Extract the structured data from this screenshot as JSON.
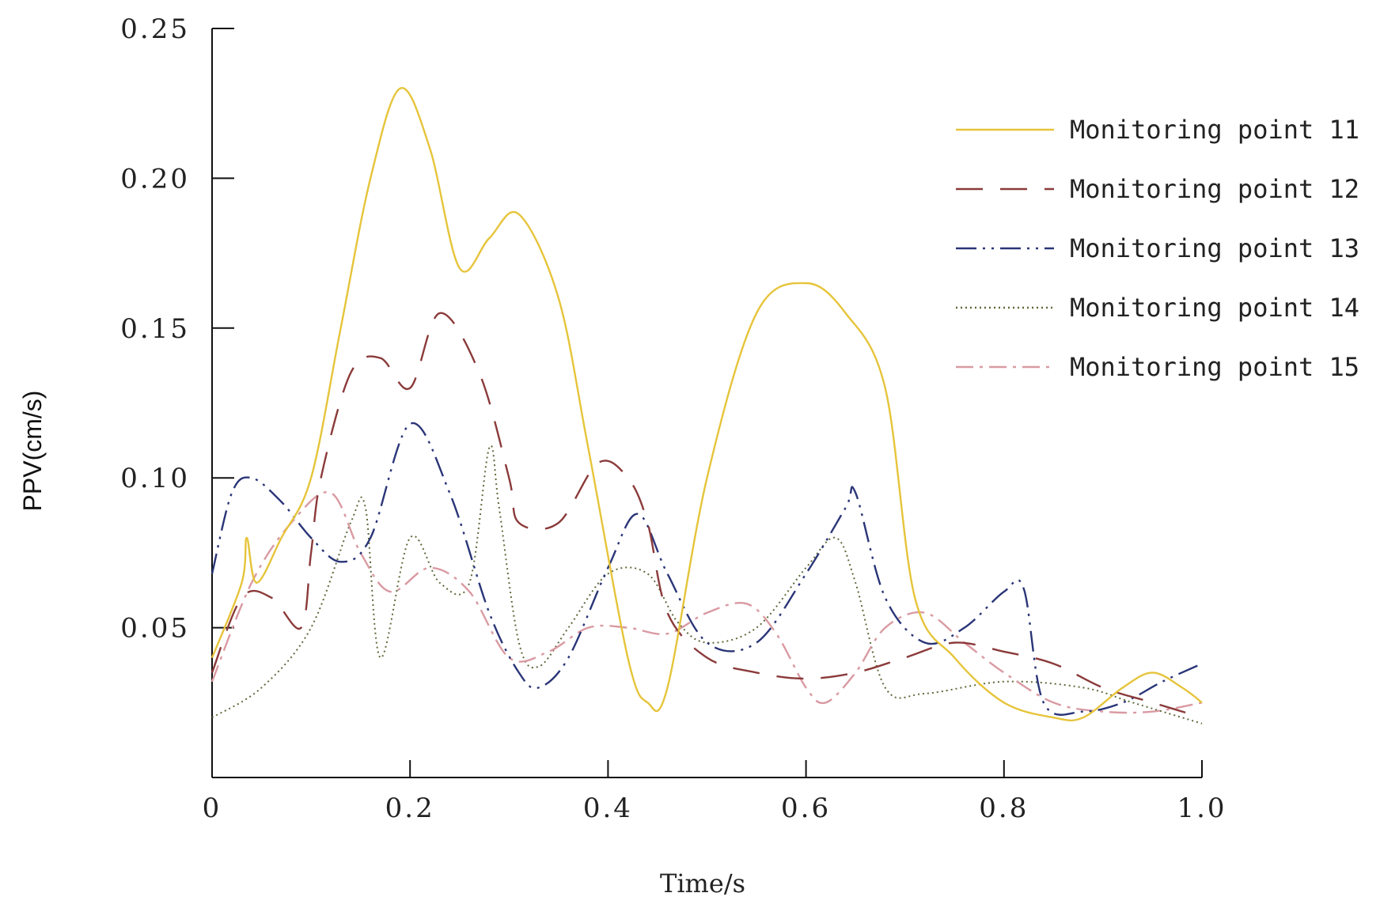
{
  "chart_data": {
    "type": "line",
    "title": "",
    "xlabel": "Time/s",
    "ylabel": "PPV(cm/s)",
    "xlim": [
      0,
      1.0
    ],
    "ylim": [
      0,
      0.25
    ],
    "x_ticks": [
      0,
      0.2,
      0.4,
      0.6,
      0.8,
      1.0
    ],
    "x_tick_labels": [
      "0",
      "0.2",
      "0.4",
      "0.6",
      "0.8",
      "1.0"
    ],
    "y_ticks": [
      0.05,
      0.1,
      0.15,
      0.2,
      0.25
    ],
    "y_tick_labels": [
      "0.05",
      "0.10",
      "0.15",
      "0.20",
      "0.25"
    ],
    "grid": false,
    "legend_position": "top-right",
    "series": [
      {
        "name": "Monitoring point 11",
        "color": "#e6c43a",
        "dash": "solid",
        "x": [
          0,
          0.03,
          0.035,
          0.045,
          0.07,
          0.1,
          0.13,
          0.16,
          0.19,
          0.22,
          0.25,
          0.28,
          0.31,
          0.35,
          0.38,
          0.42,
          0.44,
          0.46,
          0.5,
          0.55,
          0.6,
          0.64,
          0.68,
          0.71,
          0.75,
          0.8,
          0.85,
          0.88,
          0.92,
          0.95,
          0.98,
          1.0
        ],
        "y": [
          0.04,
          0.065,
          0.08,
          0.065,
          0.08,
          0.1,
          0.15,
          0.2,
          0.23,
          0.21,
          0.17,
          0.18,
          0.188,
          0.16,
          0.11,
          0.04,
          0.025,
          0.03,
          0.1,
          0.155,
          0.165,
          0.155,
          0.13,
          0.06,
          0.04,
          0.025,
          0.02,
          0.02,
          0.03,
          0.035,
          0.03,
          0.025
        ]
      },
      {
        "name": "Monitoring point 12",
        "color": "#8b3a3a",
        "dash": "long-dash",
        "x": [
          0,
          0.03,
          0.06,
          0.09,
          0.1,
          0.11,
          0.14,
          0.17,
          0.2,
          0.23,
          0.27,
          0.3,
          0.31,
          0.35,
          0.39,
          0.42,
          0.44,
          0.46,
          0.5,
          0.55,
          0.6,
          0.65,
          0.7,
          0.75,
          0.8,
          0.85,
          0.9,
          0.95,
          1.0
        ],
        "y": [
          0.035,
          0.06,
          0.06,
          0.05,
          0.075,
          0.1,
          0.135,
          0.14,
          0.13,
          0.155,
          0.135,
          0.1,
          0.085,
          0.085,
          0.105,
          0.1,
          0.085,
          0.055,
          0.04,
          0.035,
          0.033,
          0.035,
          0.04,
          0.045,
          0.042,
          0.038,
          0.03,
          0.025,
          0.02
        ]
      },
      {
        "name": "Monitoring point 13",
        "color": "#2a3577",
        "dash": "dash-dot-dot",
        "x": [
          0,
          0.02,
          0.04,
          0.07,
          0.1,
          0.13,
          0.16,
          0.2,
          0.24,
          0.28,
          0.31,
          0.33,
          0.36,
          0.4,
          0.43,
          0.46,
          0.5,
          0.55,
          0.6,
          0.64,
          0.65,
          0.68,
          0.72,
          0.76,
          0.8,
          0.82,
          0.84,
          0.88,
          0.92,
          0.96,
          1.0
        ],
        "y": [
          0.068,
          0.095,
          0.1,
          0.092,
          0.08,
          0.072,
          0.08,
          0.118,
          0.095,
          0.055,
          0.035,
          0.03,
          0.04,
          0.07,
          0.088,
          0.068,
          0.045,
          0.045,
          0.068,
          0.09,
          0.095,
          0.06,
          0.045,
          0.05,
          0.062,
          0.063,
          0.025,
          0.022,
          0.025,
          0.032,
          0.038
        ]
      },
      {
        "name": "Monitoring point 14",
        "color": "#5e6a3a",
        "dash": "dotted",
        "x": [
          0,
          0.05,
          0.1,
          0.14,
          0.155,
          0.17,
          0.2,
          0.23,
          0.26,
          0.28,
          0.29,
          0.31,
          0.33,
          0.36,
          0.4,
          0.44,
          0.47,
          0.5,
          0.55,
          0.6,
          0.63,
          0.65,
          0.68,
          0.72,
          0.8,
          0.88,
          0.93,
          1.0
        ],
        "y": [
          0.02,
          0.03,
          0.05,
          0.085,
          0.09,
          0.04,
          0.08,
          0.065,
          0.065,
          0.11,
          0.09,
          0.045,
          0.037,
          0.05,
          0.068,
          0.068,
          0.052,
          0.045,
          0.05,
          0.07,
          0.08,
          0.065,
          0.03,
          0.028,
          0.032,
          0.03,
          0.025,
          0.018
        ]
      },
      {
        "name": "Monitoring point 15",
        "color": "#d99aa2",
        "dash": "dash-dot",
        "x": [
          0,
          0.04,
          0.08,
          0.12,
          0.15,
          0.18,
          0.22,
          0.26,
          0.3,
          0.34,
          0.38,
          0.42,
          0.46,
          0.5,
          0.54,
          0.57,
          0.6,
          0.62,
          0.65,
          0.68,
          0.72,
          0.76,
          0.8,
          0.85,
          0.9,
          0.95,
          1.0
        ],
        "y": [
          0.032,
          0.065,
          0.085,
          0.095,
          0.075,
          0.062,
          0.07,
          0.062,
          0.04,
          0.042,
          0.05,
          0.05,
          0.048,
          0.055,
          0.058,
          0.048,
          0.03,
          0.025,
          0.035,
          0.05,
          0.055,
          0.045,
          0.035,
          0.025,
          0.022,
          0.022,
          0.025
        ]
      }
    ]
  }
}
